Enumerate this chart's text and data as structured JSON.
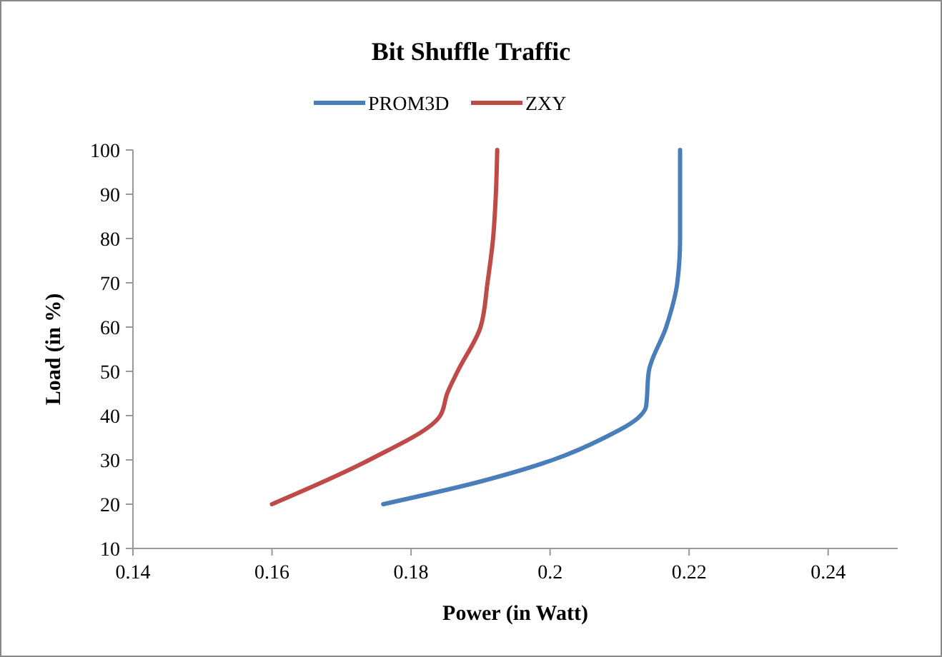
{
  "chart_data": {
    "type": "line",
    "title": "Bit Shuffle Traffic",
    "xlabel": "Power (in Watt)",
    "ylabel": "Load (in %)",
    "xlim": [
      0.14,
      0.25
    ],
    "xticks": [
      0.14,
      0.16,
      0.18,
      0.2,
      0.22,
      0.24
    ],
    "ylim": [
      10,
      100
    ],
    "yticks": [
      10,
      20,
      30,
      40,
      50,
      60,
      70,
      80,
      90,
      100
    ],
    "grid": false,
    "legend": "top",
    "marker": "none",
    "line_style": "solid",
    "series": [
      {
        "name": "PROM3D",
        "color": "#4a7ebb",
        "x": [
          0.176,
          0.1897,
          0.2004,
          0.2078,
          0.213,
          0.2138,
          0.2142,
          0.2167,
          0.2183,
          0.2187,
          0.2187,
          0.2187
        ],
        "values": [
          20,
          25,
          30,
          35,
          40,
          42,
          50,
          60,
          70,
          80,
          90,
          100
        ]
      },
      {
        "name": "ZXY",
        "color": "#be4b48",
        "x": [
          0.16,
          0.174,
          0.1842,
          0.1852,
          0.1867,
          0.19,
          0.191,
          0.1918,
          0.1922,
          0.1924
        ],
        "values": [
          20,
          30,
          40,
          45,
          50,
          60,
          70,
          80,
          90,
          100
        ]
      }
    ]
  }
}
